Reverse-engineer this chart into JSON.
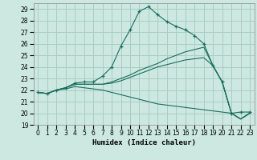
{
  "xlabel": "Humidex (Indice chaleur)",
  "background_color": "#cce8e0",
  "grid_color": "#aaccc4",
  "line_color": "#1a6e5e",
  "xlim": [
    -0.5,
    23.5
  ],
  "ylim": [
    19,
    29.5
  ],
  "yticks": [
    19,
    20,
    21,
    22,
    23,
    24,
    25,
    26,
    27,
    28,
    29
  ],
  "xticks": [
    0,
    1,
    2,
    3,
    4,
    5,
    6,
    7,
    8,
    9,
    10,
    11,
    12,
    13,
    14,
    15,
    16,
    17,
    18,
    19,
    20,
    21,
    22,
    23
  ],
  "series": [
    {
      "x": [
        0,
        1,
        2,
        3,
        4,
        5,
        6,
        7,
        8,
        9,
        10,
        11,
        12,
        13,
        14,
        15,
        16,
        17,
        18,
        19,
        20,
        21,
        22,
        23
      ],
      "y": [
        21.8,
        21.7,
        22.0,
        22.2,
        22.6,
        22.7,
        22.7,
        23.2,
        24.0,
        25.8,
        27.2,
        28.8,
        29.2,
        28.5,
        27.9,
        27.5,
        27.2,
        26.7,
        26.0,
        24.1,
        22.7,
        20.0,
        20.1,
        20.1
      ],
      "has_markers": true
    },
    {
      "x": [
        0,
        1,
        2,
        3,
        4,
        5,
        6,
        7,
        8,
        9,
        10,
        11,
        12,
        13,
        14,
        15,
        16,
        17,
        18,
        19,
        20,
        21,
        22,
        23
      ],
      "y": [
        21.8,
        21.7,
        22.0,
        22.2,
        22.5,
        22.5,
        22.5,
        22.5,
        22.6,
        22.8,
        23.1,
        23.4,
        23.7,
        24.0,
        24.2,
        24.4,
        24.6,
        24.7,
        24.8,
        24.1,
        22.7,
        20.0,
        19.5,
        20.0
      ],
      "has_markers": false
    },
    {
      "x": [
        0,
        1,
        2,
        3,
        4,
        5,
        6,
        7,
        8,
        9,
        10,
        11,
        12,
        13,
        14,
        15,
        16,
        17,
        18,
        19,
        20,
        21,
        22,
        23
      ],
      "y": [
        21.8,
        21.7,
        22.0,
        22.2,
        22.5,
        22.5,
        22.5,
        22.5,
        22.7,
        23.0,
        23.3,
        23.7,
        24.0,
        24.3,
        24.7,
        25.0,
        25.3,
        25.5,
        25.7,
        24.1,
        22.7,
        20.0,
        19.5,
        20.0
      ],
      "has_markers": false
    },
    {
      "x": [
        0,
        1,
        2,
        3,
        4,
        5,
        6,
        7,
        8,
        9,
        10,
        11,
        12,
        13,
        14,
        15,
        16,
        17,
        18,
        19,
        20,
        21,
        22,
        23
      ],
      "y": [
        21.8,
        21.7,
        22.0,
        22.1,
        22.3,
        22.2,
        22.1,
        22.0,
        21.8,
        21.6,
        21.4,
        21.2,
        21.0,
        20.8,
        20.7,
        20.6,
        20.5,
        20.4,
        20.3,
        20.2,
        20.1,
        20.0,
        19.5,
        20.0
      ],
      "has_markers": false
    }
  ]
}
